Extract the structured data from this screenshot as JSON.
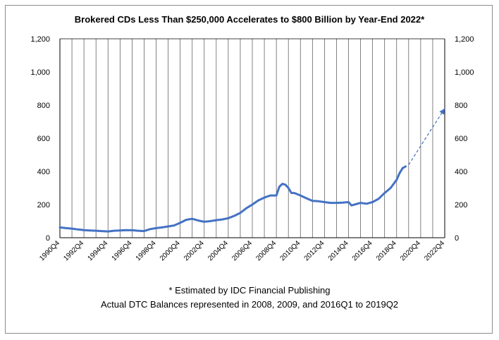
{
  "chart_data": {
    "type": "line",
    "title": "Brokered CDs Less Than $250,000 Accelerates to $800 Billion by Year-End 2022*",
    "xlabel": "",
    "ylabel": "",
    "x_categories": [
      "1990Q4",
      "1992Q4",
      "1994Q4",
      "1996Q4",
      "1998Q4",
      "2000Q4",
      "2002Q4",
      "2004Q4",
      "2006Q4",
      "2008Q4",
      "2010Q4",
      "2012Q4",
      "2014Q4",
      "2016Q4",
      "2018Q4",
      "2020Q4",
      "2022Q4"
    ],
    "ylim": [
      0,
      1200
    ],
    "yticks": [
      "0",
      "200",
      "400",
      "600",
      "800",
      "1,000",
      "1,200"
    ],
    "y_axes": [
      "left",
      "right"
    ],
    "grid": "vertical",
    "series": [
      {
        "style": "solid",
        "color": "#4472c4",
        "points": [
          [
            "1990Q4",
            62
          ],
          [
            "1991Q2",
            58
          ],
          [
            "1991Q4",
            55
          ],
          [
            "1992Q2",
            50
          ],
          [
            "1992Q4",
            46
          ],
          [
            "1993Q2",
            44
          ],
          [
            "1993Q4",
            42
          ],
          [
            "1994Q2",
            40
          ],
          [
            "1994Q4",
            38
          ],
          [
            "1995Q2",
            42
          ],
          [
            "1995Q4",
            44
          ],
          [
            "1996Q2",
            46
          ],
          [
            "1996Q4",
            45
          ],
          [
            "1997Q2",
            42
          ],
          [
            "1997Q4",
            40
          ],
          [
            "1998Q2",
            52
          ],
          [
            "1998Q4",
            58
          ],
          [
            "1999Q2",
            62
          ],
          [
            "1999Q4",
            68
          ],
          [
            "2000Q2",
            74
          ],
          [
            "2000Q4",
            90
          ],
          [
            "2001Q2",
            108
          ],
          [
            "2001Q4",
            114
          ],
          [
            "2002Q2",
            104
          ],
          [
            "2002Q4",
            96
          ],
          [
            "2003Q2",
            100
          ],
          [
            "2003Q4",
            106
          ],
          [
            "2004Q2",
            110
          ],
          [
            "2004Q4",
            118
          ],
          [
            "2005Q2",
            132
          ],
          [
            "2005Q4",
            150
          ],
          [
            "2006Q2",
            178
          ],
          [
            "2006Q4",
            200
          ],
          [
            "2007Q2",
            225
          ],
          [
            "2007Q4",
            242
          ],
          [
            "2008Q2",
            255
          ],
          [
            "2008Q4",
            255
          ],
          [
            "2009Q1",
            308
          ],
          [
            "2009Q2",
            325
          ],
          [
            "2009Q3",
            320
          ],
          [
            "2009Q4",
            300
          ],
          [
            "2010Q1",
            270
          ],
          [
            "2010Q2",
            270
          ],
          [
            "2010Q4",
            255
          ],
          [
            "2011Q2",
            238
          ],
          [
            "2011Q4",
            222
          ],
          [
            "2012Q2",
            220
          ],
          [
            "2012Q4",
            215
          ],
          [
            "2013Q2",
            210
          ],
          [
            "2013Q4",
            210
          ],
          [
            "2014Q2",
            212
          ],
          [
            "2014Q4",
            215
          ],
          [
            "2015Q1",
            195
          ],
          [
            "2015Q2",
            200
          ],
          [
            "2015Q4",
            210
          ],
          [
            "2016Q2",
            205
          ],
          [
            "2016Q4",
            215
          ],
          [
            "2017Q2",
            235
          ],
          [
            "2017Q4",
            270
          ],
          [
            "2018Q2",
            300
          ],
          [
            "2018Q4",
            350
          ],
          [
            "2019Q1",
            390
          ],
          [
            "2019Q2",
            420
          ],
          [
            "2019Q3",
            430
          ]
        ]
      },
      {
        "style": "dashed",
        "color": "#4472c4",
        "points": [
          [
            "2019Q4",
            440
          ],
          [
            "2022Q4",
            780
          ]
        ]
      }
    ],
    "annotations": [
      "* Estimated by IDC Financial Publishing",
      "Actual DTC Balances represented in 2008, 2009, and 2016Q1 to 2019Q2"
    ]
  }
}
